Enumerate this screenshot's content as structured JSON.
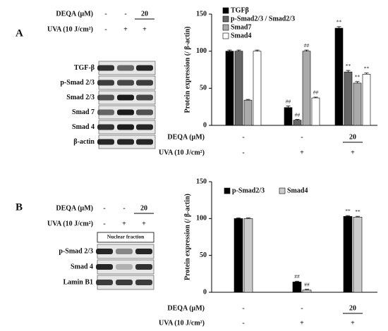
{
  "panels": [
    {
      "label": "A",
      "condition_rows": [
        {
          "label": "DEQA (μM)",
          "values": [
            "-",
            "-",
            "20"
          ]
        },
        {
          "label": "UVA (10 J/cm²)",
          "values": [
            "-",
            "+",
            "+"
          ]
        }
      ],
      "blot_labels": [
        "TGF-β",
        "p-Smad 2/3",
        "Smad 2/3",
        "Smad 7",
        "Smad 4",
        "β-actin"
      ]
    },
    {
      "label": "B",
      "condition_rows": [
        {
          "label": "DEQA (μM)",
          "values": [
            "-",
            "-",
            "20"
          ]
        },
        {
          "label": "UVA (10 J/cm²)",
          "values": [
            "-",
            "+",
            "+"
          ]
        }
      ],
      "fraction_label": "Nuclear fraction",
      "blot_labels": [
        "p-Smad 2/3",
        "Smad 4",
        "Lamin B1"
      ]
    }
  ],
  "chart_data": [
    {
      "type": "bar",
      "y_label": "Protein expression (/ β-actin)",
      "condition_rows": [
        {
          "label": "DEQA (μM)",
          "values": [
            "-",
            "-",
            "20"
          ]
        },
        {
          "label": "UVA (10 J/cm²)",
          "values": [
            "-",
            "+",
            "+"
          ]
        }
      ],
      "ylim": [
        0,
        150
      ],
      "yticks": [
        0,
        50,
        100,
        150
      ],
      "legend": "top-left",
      "series": [
        {
          "name": "TGFβ",
          "color": "#000000",
          "values": [
            100,
            24,
            131
          ],
          "errors": [
            1.5,
            2,
            2
          ],
          "significance": [
            null,
            "##",
            "**"
          ]
        },
        {
          "name": "p-Smad2/3 / Smad2/3",
          "color": "#666666",
          "values": [
            100,
            7,
            72
          ],
          "errors": [
            1.5,
            1,
            2
          ],
          "significance": [
            null,
            "##",
            "**"
          ]
        },
        {
          "name": "Smad7",
          "color": "#aaaaaa",
          "values": [
            34,
            100,
            57
          ],
          "errors": [
            1,
            1.5,
            2
          ],
          "significance": [
            null,
            "##",
            "**"
          ]
        },
        {
          "name": "Smad4",
          "color": "#ffffff",
          "values": [
            100,
            37,
            69
          ],
          "errors": [
            1.5,
            1,
            1.5
          ],
          "significance": [
            null,
            "##",
            "**"
          ]
        }
      ]
    },
    {
      "type": "bar",
      "y_label": "Protein expression (/ β-actin)",
      "condition_rows": [
        {
          "label": "DEQA (μM)",
          "values": [
            "-",
            "-",
            "20"
          ]
        },
        {
          "label": "UVA (10 J/cm²)",
          "values": [
            "-",
            "+",
            "+"
          ]
        }
      ],
      "ylim": [
        0,
        150
      ],
      "yticks": [
        0,
        50,
        100,
        150
      ],
      "legend": "top",
      "series": [
        {
          "name": "p-Smad2/3",
          "color": "#000000",
          "values": [
            100,
            14,
            103
          ],
          "errors": [
            1,
            1,
            1
          ],
          "significance": [
            null,
            "##",
            "**"
          ]
        },
        {
          "name": "Smad4",
          "color": "#cccccc",
          "values": [
            100,
            3,
            102
          ],
          "errors": [
            1,
            1,
            1
          ],
          "significance": [
            null,
            "##",
            "**"
          ]
        }
      ]
    }
  ]
}
